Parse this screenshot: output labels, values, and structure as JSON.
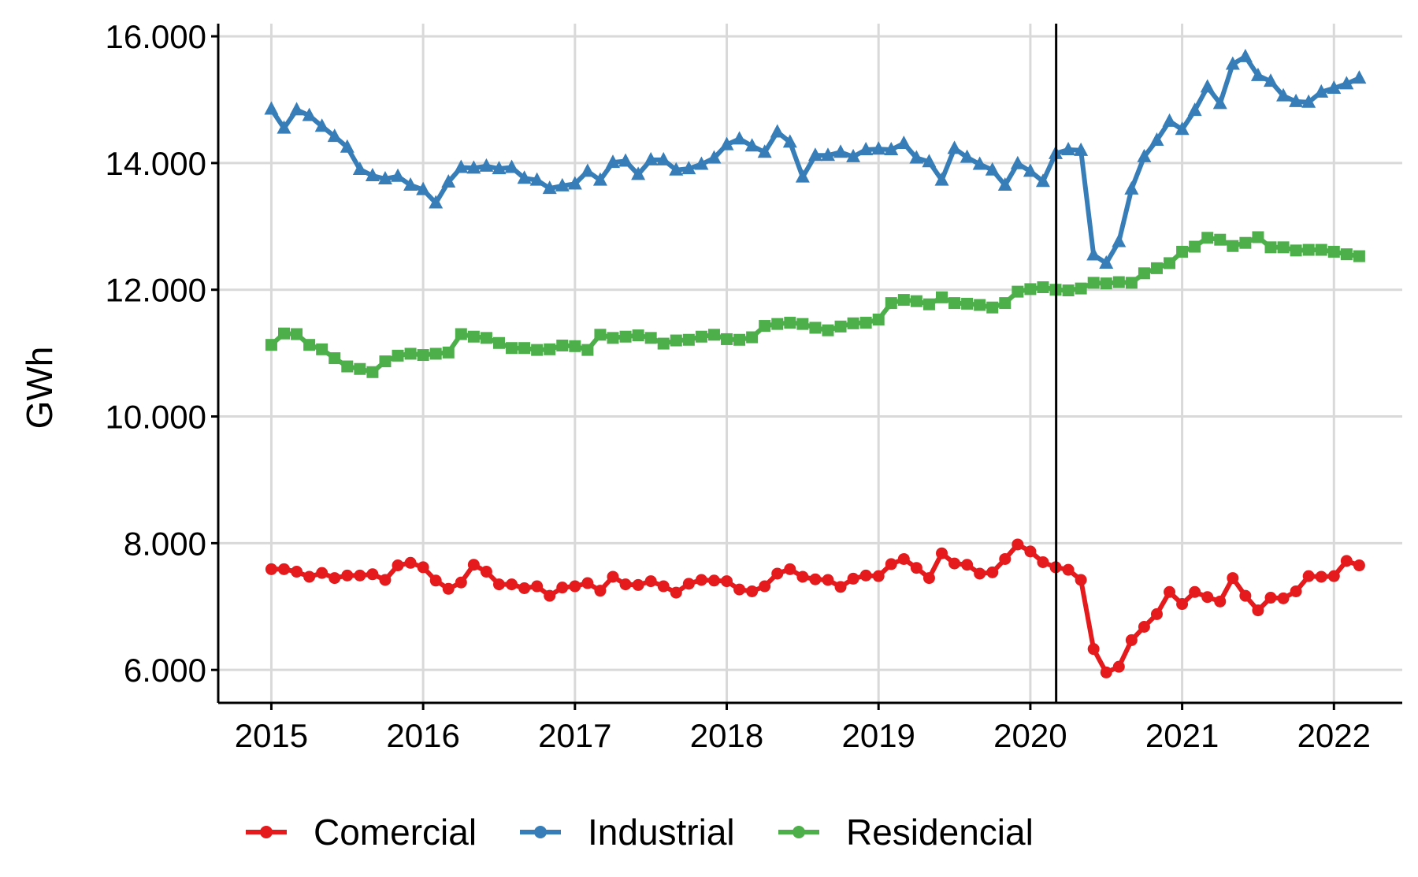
{
  "chart_data": {
    "type": "line",
    "title": "",
    "xlabel": "",
    "ylabel": "GWh",
    "xlim": [
      2014.65,
      2022.45
    ],
    "ylim": [
      5480,
      16200
    ],
    "x_ticks": [
      2015,
      2016,
      2017,
      2018,
      2019,
      2020,
      2021,
      2022
    ],
    "x_tick_labels": [
      "2015",
      "2016",
      "2017",
      "2018",
      "2019",
      "2020",
      "2021",
      "2022"
    ],
    "y_ticks": [
      6000,
      8000,
      10000,
      12000,
      14000,
      16000
    ],
    "y_tick_labels": [
      "6.000",
      "8.000",
      "10.000",
      "12.000",
      "14.000",
      "16.000"
    ],
    "grid": true,
    "vline_x": 2020.17,
    "legend_position": "bottom",
    "x_start": 2015.0,
    "x_step": 0.083333,
    "series": [
      {
        "name": "Comercial",
        "color": "#e41a1c",
        "marker": "circle",
        "values": [
          7590,
          7590,
          7550,
          7470,
          7530,
          7450,
          7490,
          7490,
          7510,
          7420,
          7650,
          7690,
          7620,
          7410,
          7280,
          7380,
          7660,
          7550,
          7350,
          7350,
          7290,
          7320,
          7170,
          7300,
          7320,
          7370,
          7250,
          7470,
          7350,
          7340,
          7400,
          7320,
          7220,
          7360,
          7420,
          7410,
          7400,
          7270,
          7240,
          7320,
          7520,
          7590,
          7470,
          7430,
          7420,
          7310,
          7440,
          7490,
          7480,
          7670,
          7750,
          7610,
          7450,
          7840,
          7680,
          7660,
          7520,
          7540,
          7750,
          7980,
          7870,
          7700,
          7620,
          7580,
          7420,
          6330,
          5960,
          6050,
          6470,
          6680,
          6880,
          7230,
          7040,
          7230,
          7150,
          7080,
          7450,
          7170,
          6940,
          7140,
          7130,
          7240,
          7480,
          7470,
          7480,
          7720,
          7650
        ]
      },
      {
        "name": "Industrial",
        "color": "#377eb8",
        "marker": "triangle",
        "values": [
          14850,
          14550,
          14840,
          14750,
          14580,
          14420,
          14250,
          13900,
          13800,
          13750,
          13790,
          13650,
          13580,
          13370,
          13700,
          13930,
          13920,
          13950,
          13910,
          13930,
          13760,
          13730,
          13600,
          13640,
          13670,
          13870,
          13730,
          14010,
          14030,
          13820,
          14050,
          14050,
          13890,
          13910,
          13980,
          14080,
          14290,
          14380,
          14270,
          14170,
          14490,
          14330,
          13780,
          14120,
          14120,
          14170,
          14100,
          14210,
          14220,
          14210,
          14310,
          14080,
          14020,
          13730,
          14230,
          14090,
          13980,
          13890,
          13650,
          13990,
          13870,
          13710,
          14150,
          14210,
          14200,
          12550,
          12420,
          12760,
          13590,
          14100,
          14360,
          14660,
          14530,
          14830,
          15200,
          14940,
          15560,
          15680,
          15380,
          15290,
          15060,
          14970,
          14960,
          15120,
          15180,
          15250,
          15340
        ]
      },
      {
        "name": "Residencial",
        "color": "#4daf4a",
        "marker": "square",
        "values": [
          11130,
          11310,
          11300,
          11130,
          11060,
          10920,
          10790,
          10750,
          10700,
          10870,
          10960,
          10990,
          10970,
          10990,
          11010,
          11300,
          11260,
          11240,
          11160,
          11080,
          11080,
          11050,
          11060,
          11120,
          11110,
          11050,
          11290,
          11240,
          11260,
          11280,
          11240,
          11150,
          11200,
          11210,
          11260,
          11290,
          11220,
          11210,
          11250,
          11430,
          11460,
          11480,
          11460,
          11400,
          11360,
          11420,
          11470,
          11480,
          11530,
          11790,
          11840,
          11820,
          11770,
          11880,
          11790,
          11780,
          11760,
          11720,
          11790,
          11970,
          12010,
          12040,
          12000,
          11990,
          12020,
          12110,
          12100,
          12120,
          12110,
          12260,
          12340,
          12420,
          12600,
          12680,
          12820,
          12790,
          12690,
          12740,
          12830,
          12670,
          12670,
          12620,
          12630,
          12630,
          12600,
          12560,
          12530
        ]
      }
    ]
  }
}
